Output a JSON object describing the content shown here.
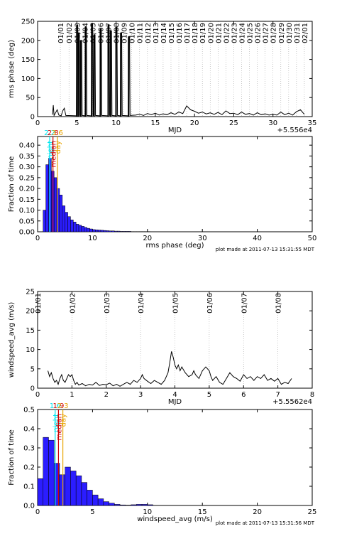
{
  "chart_data": [
    {
      "type": "line",
      "ylabel": "rms phase (deg)",
      "xlabel": "MJD",
      "offset_label": "+5.556e4",
      "xlim": [
        0,
        35
      ],
      "ylim": [
        0,
        250
      ],
      "xticks": [
        "0",
        "5",
        "10",
        "15",
        "20",
        "25",
        "30",
        "35"
      ],
      "yticks": [
        "0",
        "50",
        "100",
        "150",
        "200",
        "250"
      ],
      "date_labels": [
        "01/01",
        "01/02",
        "01/03",
        "01/04",
        "01/05",
        "01/06",
        "01/07",
        "01/08",
        "01/09",
        "01/10",
        "01/11",
        "01/12",
        "01/13",
        "01/14",
        "01/15",
        "01/16",
        "01/17",
        "01/18",
        "01/19",
        "01/20",
        "01/21",
        "01/22",
        "01/23",
        "01/24",
        "01/25",
        "01/26",
        "01/27",
        "01/28",
        "01/29",
        "01/30",
        "01/31",
        "02/01"
      ],
      "date_positions": [
        2.9,
        4.0,
        5.0,
        6.0,
        7.0,
        8.0,
        9.0,
        10.0,
        11.0,
        12.0,
        13.0,
        14.0,
        15.0,
        16.0,
        17.0,
        18.0,
        19.0,
        20.0,
        21.0,
        22.0,
        23.0,
        24.0,
        25.0,
        26.0,
        27.0,
        28.0,
        29.0,
        30.0,
        31.0,
        32.0,
        33.0,
        34.0
      ],
      "spikes": [
        {
          "x": 5.0,
          "y": 240
        },
        {
          "x": 5.2,
          "y": 220
        },
        {
          "x": 5.5,
          "y": 200
        },
        {
          "x": 6.1,
          "y": 235
        },
        {
          "x": 6.9,
          "y": 245
        },
        {
          "x": 7.2,
          "y": 215
        },
        {
          "x": 8.0,
          "y": 230
        },
        {
          "x": 9.0,
          "y": 240
        },
        {
          "x": 9.3,
          "y": 225
        },
        {
          "x": 10.0,
          "y": 235
        },
        {
          "x": 10.6,
          "y": 220
        },
        {
          "x": 11.6,
          "y": 210
        }
      ],
      "baseline_points": [
        [
          1.9,
          5
        ],
        [
          2.0,
          30
        ],
        [
          2.1,
          3
        ],
        [
          2.5,
          18
        ],
        [
          2.7,
          4
        ],
        [
          3.0,
          2
        ],
        [
          3.2,
          15
        ],
        [
          3.4,
          22
        ],
        [
          3.6,
          3
        ],
        [
          12.5,
          4
        ],
        [
          13,
          6
        ],
        [
          13.5,
          3
        ],
        [
          14,
          8
        ],
        [
          14.5,
          5
        ],
        [
          15,
          9
        ],
        [
          15.5,
          4
        ],
        [
          16,
          7
        ],
        [
          16.5,
          5
        ],
        [
          17,
          10
        ],
        [
          17.5,
          6
        ],
        [
          18,
          12
        ],
        [
          18.5,
          8
        ],
        [
          19,
          28
        ],
        [
          19.5,
          18
        ],
        [
          20,
          14
        ],
        [
          20.5,
          9
        ],
        [
          21,
          12
        ],
        [
          21.5,
          7
        ],
        [
          22,
          10
        ],
        [
          22.5,
          6
        ],
        [
          23,
          11
        ],
        [
          23.5,
          5
        ],
        [
          24,
          15
        ],
        [
          24.5,
          8
        ],
        [
          25,
          9
        ],
        [
          25.5,
          5
        ],
        [
          26,
          12
        ],
        [
          26.5,
          6
        ],
        [
          27,
          8
        ],
        [
          27.5,
          4
        ],
        [
          28,
          10
        ],
        [
          28.5,
          5
        ],
        [
          29,
          7
        ],
        [
          29.5,
          4
        ],
        [
          30,
          6
        ],
        [
          30.5,
          4
        ],
        [
          31,
          12
        ],
        [
          31.5,
          5
        ],
        [
          32,
          9
        ],
        [
          32.5,
          4
        ],
        [
          33,
          13
        ],
        [
          33.5,
          18
        ],
        [
          34,
          6
        ]
      ]
    },
    {
      "type": "bar",
      "ylabel": "Fraction of time",
      "xlabel": "rms phase (deg)",
      "footer": "plot made at 2011-07-13 15:31:55 MDT",
      "xlim": [
        0,
        50
      ],
      "ylim": [
        0,
        0.44
      ],
      "xticks": [
        "0",
        "10",
        "20",
        "30",
        "40",
        "50"
      ],
      "yticks": [
        "0.00",
        "0.05",
        "0.10",
        "0.15",
        "0.20",
        "0.25",
        "0.30",
        "0.35",
        "0.40"
      ],
      "bin_width": 0.5,
      "values": [
        0.0,
        0.0,
        0.1,
        0.31,
        0.34,
        0.28,
        0.25,
        0.2,
        0.17,
        0.12,
        0.09,
        0.07,
        0.055,
        0.045,
        0.035,
        0.03,
        0.025,
        0.02,
        0.016,
        0.013,
        0.01,
        0.009,
        0.008,
        0.007,
        0.006,
        0.005,
        0.004,
        0.004,
        0.003,
        0.003,
        0.002,
        0.002,
        0.002,
        0.002,
        0.001,
        0.001,
        0.001,
        0.001,
        0.001,
        0.001,
        0.001
      ],
      "markers": [
        {
          "label": "night",
          "value_label": "2.2",
          "x": 2.2,
          "color": "#00e5ee"
        },
        {
          "label": "median",
          "value_label": "2.8",
          "x": 2.8,
          "color": "#cc0000"
        },
        {
          "label": "day",
          "value_label": "3.6",
          "x": 3.6,
          "color": "#e8a400"
        }
      ]
    },
    {
      "type": "line",
      "ylabel": "windspeed_avg (m/s)",
      "xlabel": "MJD",
      "offset_label": "+5.5562e4",
      "xlim": [
        0,
        8
      ],
      "ylim": [
        0,
        25
      ],
      "xticks": [
        "0",
        "1",
        "2",
        "3",
        "4",
        "5",
        "6",
        "7",
        "8"
      ],
      "yticks": [
        "0",
        "5",
        "10",
        "15",
        "20",
        "25"
      ],
      "date_labels": [
        "01/01",
        "01/02",
        "01/03",
        "01/04",
        "01/05",
        "01/06",
        "01/07",
        "01/08"
      ],
      "date_positions": [
        0.0,
        1.0,
        2.0,
        3.0,
        4.0,
        5.0,
        6.0,
        7.0
      ],
      "points": [
        [
          0.3,
          4.5
        ],
        [
          0.35,
          3.0
        ],
        [
          0.4,
          4.0
        ],
        [
          0.45,
          2.5
        ],
        [
          0.5,
          1.5
        ],
        [
          0.55,
          2.0
        ],
        [
          0.6,
          1.0
        ],
        [
          0.65,
          2.5
        ],
        [
          0.7,
          3.5
        ],
        [
          0.75,
          2.0
        ],
        [
          0.8,
          1.5
        ],
        [
          0.85,
          2.5
        ],
        [
          0.9,
          3.5
        ],
        [
          0.95,
          3.0
        ],
        [
          1.0,
          3.5
        ],
        [
          1.05,
          2.0
        ],
        [
          1.1,
          1.0
        ],
        [
          1.15,
          1.5
        ],
        [
          1.2,
          0.8
        ],
        [
          1.3,
          1.2
        ],
        [
          1.4,
          0.6
        ],
        [
          1.5,
          1.0
        ],
        [
          1.6,
          0.8
        ],
        [
          1.7,
          1.5
        ],
        [
          1.8,
          0.7
        ],
        [
          1.9,
          1.0
        ],
        [
          2.0,
          0.9
        ],
        [
          2.1,
          1.3
        ],
        [
          2.2,
          0.6
        ],
        [
          2.3,
          1.0
        ],
        [
          2.4,
          0.5
        ],
        [
          2.5,
          1.0
        ],
        [
          2.6,
          1.5
        ],
        [
          2.7,
          1.0
        ],
        [
          2.8,
          2.0
        ],
        [
          2.9,
          1.5
        ],
        [
          3.0,
          2.5
        ],
        [
          3.05,
          3.5
        ],
        [
          3.1,
          2.5
        ],
        [
          3.2,
          1.8
        ],
        [
          3.3,
          1.2
        ],
        [
          3.4,
          2.0
        ],
        [
          3.5,
          1.5
        ],
        [
          3.6,
          1.0
        ],
        [
          3.7,
          2.0
        ],
        [
          3.75,
          3.0
        ],
        [
          3.8,
          4.0
        ],
        [
          3.85,
          6.5
        ],
        [
          3.9,
          9.5
        ],
        [
          3.95,
          8.0
        ],
        [
          4.0,
          6.0
        ],
        [
          4.05,
          5.0
        ],
        [
          4.1,
          6.0
        ],
        [
          4.15,
          4.5
        ],
        [
          4.2,
          5.5
        ],
        [
          4.3,
          4.0
        ],
        [
          4.4,
          3.0
        ],
        [
          4.5,
          3.5
        ],
        [
          4.55,
          4.5
        ],
        [
          4.6,
          3.5
        ],
        [
          4.7,
          2.5
        ],
        [
          4.8,
          4.5
        ],
        [
          4.9,
          5.5
        ],
        [
          5.0,
          4.5
        ],
        [
          5.05,
          3.0
        ],
        [
          5.1,
          2.0
        ],
        [
          5.2,
          3.0
        ],
        [
          5.3,
          1.5
        ],
        [
          5.4,
          1.0
        ],
        [
          5.5,
          2.5
        ],
        [
          5.6,
          4.0
        ],
        [
          5.7,
          3.0
        ],
        [
          5.8,
          2.5
        ],
        [
          5.9,
          1.8
        ],
        [
          6.0,
          3.5
        ],
        [
          6.1,
          2.5
        ],
        [
          6.2,
          3.0
        ],
        [
          6.3,
          2.0
        ],
        [
          6.4,
          3.0
        ],
        [
          6.5,
          2.5
        ],
        [
          6.6,
          3.5
        ],
        [
          6.7,
          2.0
        ],
        [
          6.8,
          2.5
        ],
        [
          6.9,
          1.8
        ],
        [
          7.0,
          2.5
        ],
        [
          7.1,
          1.0
        ],
        [
          7.2,
          1.5
        ],
        [
          7.3,
          1.2
        ],
        [
          7.4,
          2.5
        ]
      ]
    },
    {
      "type": "bar",
      "ylabel": "Fraction of time",
      "xlabel": "windspeed_avg (m/s)",
      "footer": "plot made at 2011-07-13 15:31:56 MDT",
      "xlim": [
        0,
        25
      ],
      "ylim": [
        0,
        0.5
      ],
      "xticks": [
        "0",
        "5",
        "10",
        "15",
        "20",
        "25"
      ],
      "yticks": [
        "0.0",
        "0.1",
        "0.2",
        "0.3",
        "0.4",
        "0.5"
      ],
      "bin_width": 0.5,
      "values": [
        0.14,
        0.355,
        0.34,
        0.22,
        0.16,
        0.2,
        0.18,
        0.155,
        0.12,
        0.08,
        0.055,
        0.035,
        0.02,
        0.012,
        0.006,
        0.003,
        0.002,
        0.004,
        0.006,
        0.006,
        0.004
      ],
      "markers": [
        {
          "label": "night",
          "value_label": "1.6",
          "x": 1.6,
          "color": "#00e5ee"
        },
        {
          "label": "median",
          "value_label": "1.9",
          "x": 1.9,
          "color": "#cc0000"
        },
        {
          "label": "day",
          "value_label": "2.3",
          "x": 2.3,
          "color": "#e8a400"
        }
      ]
    }
  ]
}
